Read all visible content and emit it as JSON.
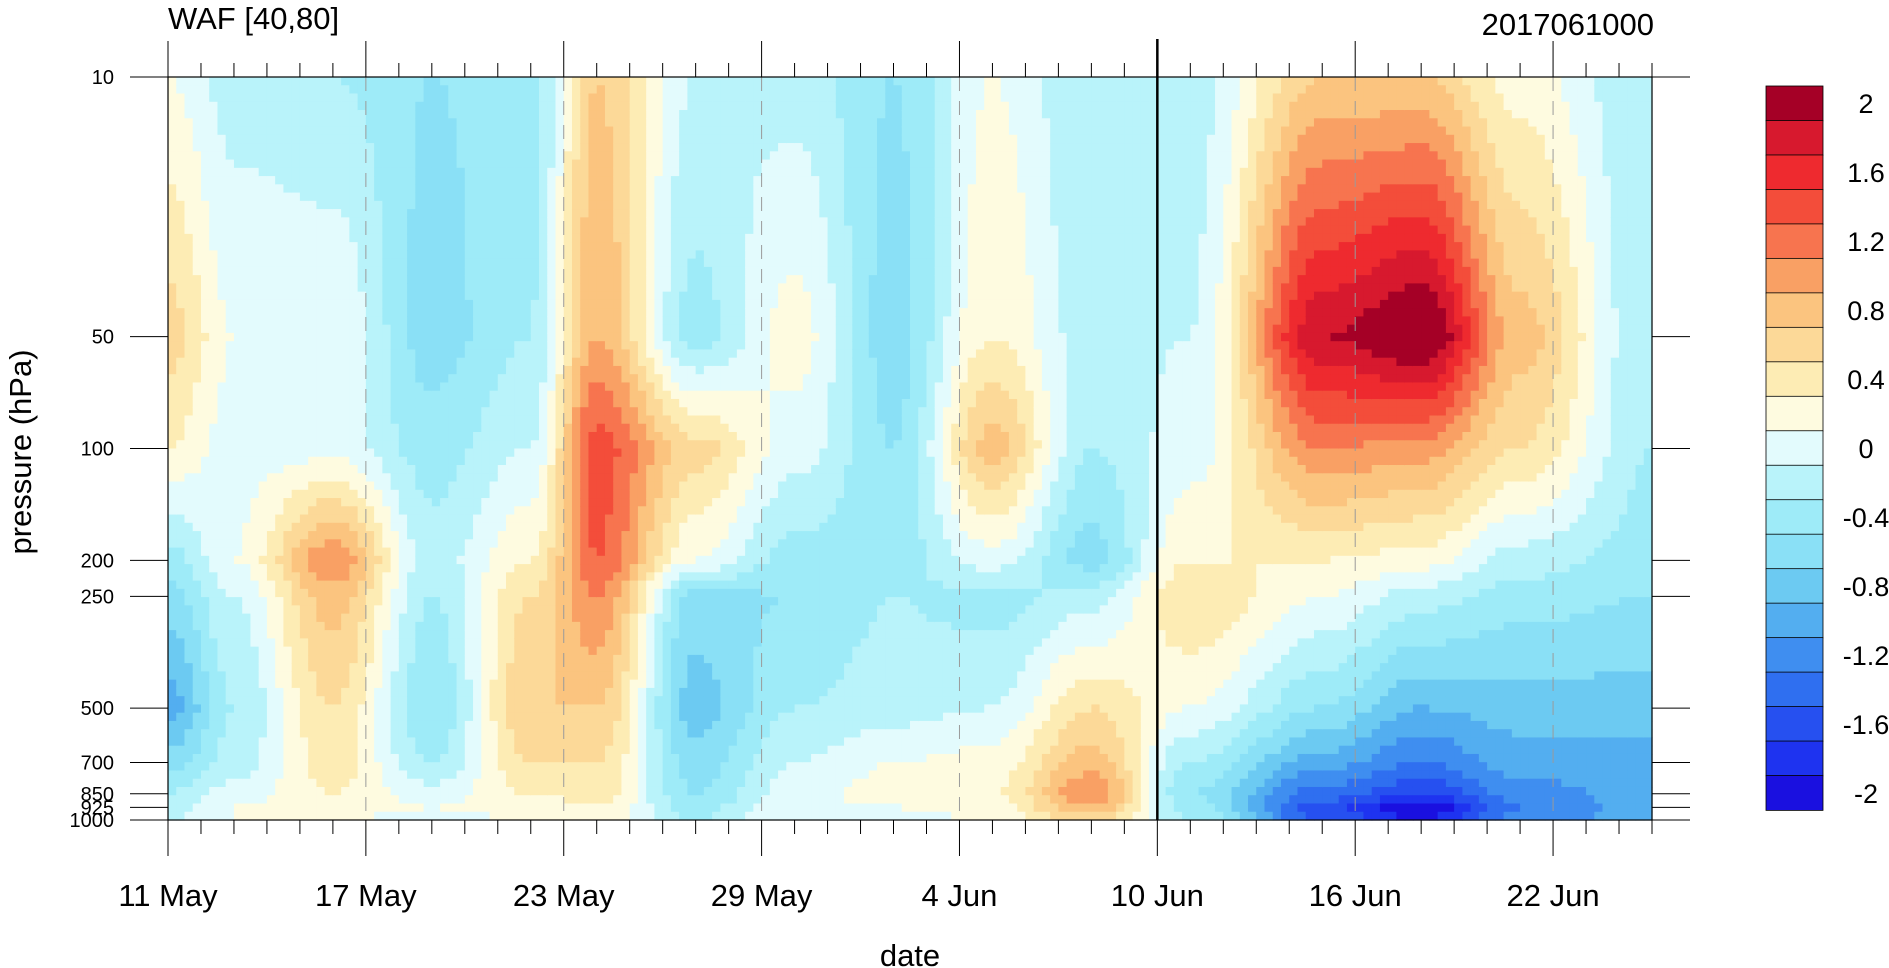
{
  "chart_data": {
    "type": "heatmap",
    "title": "WAF [40,80]",
    "right_title": "2017061000",
    "xlabel": "date",
    "ylabel": "pressure (hPa)",
    "x_tick_labels": [
      "11 May",
      "17 May",
      "23 May",
      "29 May",
      "4 Jun",
      "10 Jun",
      "16 Jun",
      "22 Jun"
    ],
    "x_tick_days": [
      0,
      6,
      12,
      18,
      24,
      30,
      36,
      42
    ],
    "x_range_days": [
      0,
      45
    ],
    "marked_day": 30,
    "y_scale": "log",
    "y_ticks": [
      10,
      50,
      100,
      200,
      250,
      500,
      700,
      850,
      925,
      1000
    ],
    "y_tick_labels": [
      "10",
      "50",
      "100",
      "200",
      "250",
      "500",
      "700",
      "850",
      "925",
      "1000"
    ],
    "y_range": [
      10,
      1000
    ],
    "colorbar": {
      "label_values": [
        2,
        1.6,
        1.2,
        0.8,
        0.4,
        0,
        -0.4,
        -0.8,
        -1.2,
        -1.6,
        -2
      ],
      "labels": [
        "2",
        "1.6",
        "1.2",
        "0.8",
        "0.4",
        "0",
        "-0.4",
        "-0.8",
        "-1.2",
        "-1.6",
        "-2"
      ],
      "colors": [
        "#a50026",
        "#d7192e",
        "#ee2a2f",
        "#f34d3a",
        "#f7744f",
        "#f9a064",
        "#fbc47f",
        "#fcd998",
        "#fdecb4",
        "#fefbe0",
        "#e3fbfd",
        "#b9f3fa",
        "#9eebf8",
        "#8ae0f6",
        "#6ccaf2",
        "#53aef0",
        "#3f8ef0",
        "#2f6ff0",
        "#2650f0",
        "#1e33f0",
        "#1a10e0"
      ]
    },
    "values_grid_note": "",
    "series": [
      {
        "day": 0,
        "p": [
          10,
          50,
          100,
          200,
          250,
          500,
          700,
          850,
          925,
          1000
        ],
        "v": [
          0.1,
          0.6,
          0.3,
          -0.4,
          -0.6,
          -1.0,
          -0.6,
          -0.3,
          -0.2,
          -0.1
        ]
      },
      {
        "day": 2,
        "p": [
          10,
          50,
          100,
          200,
          250,
          500,
          700,
          850,
          925,
          1000
        ],
        "v": [
          -0.2,
          0.1,
          0.0,
          0.1,
          -0.1,
          -0.3,
          -0.2,
          0.0,
          0.1,
          0.1
        ]
      },
      {
        "day": 5,
        "p": [
          10,
          50,
          100,
          200,
          250,
          500,
          700,
          850,
          925,
          1000
        ],
        "v": [
          -0.3,
          0.1,
          0.0,
          1.1,
          0.8,
          0.5,
          0.4,
          0.3,
          0.2,
          0.1
        ]
      },
      {
        "day": 8,
        "p": [
          10,
          50,
          100,
          200,
          250,
          500,
          700,
          850,
          925,
          1000
        ],
        "v": [
          -0.5,
          -0.6,
          -0.4,
          -0.2,
          -0.3,
          -0.5,
          -0.3,
          0.0,
          0.1,
          0.0
        ]
      },
      {
        "day": 11,
        "p": [
          10,
          50,
          100,
          200,
          250,
          500,
          700,
          850,
          925,
          1000
        ],
        "v": [
          -0.4,
          -0.3,
          -0.1,
          0.3,
          0.5,
          0.7,
          0.5,
          0.3,
          0.2,
          0.1
        ]
      },
      {
        "day": 13,
        "p": [
          10,
          50,
          100,
          200,
          250,
          500,
          700,
          850,
          925,
          1000
        ],
        "v": [
          0.7,
          0.9,
          1.4,
          1.3,
          1.1,
          0.7,
          0.5,
          0.4,
          0.3,
          0.2
        ]
      },
      {
        "day": 16,
        "p": [
          10,
          50,
          100,
          200,
          250,
          500,
          700,
          850,
          925,
          1000
        ],
        "v": [
          -0.1,
          -0.4,
          0.6,
          0.1,
          -0.6,
          -0.8,
          -0.6,
          -0.5,
          -0.4,
          -0.3
        ]
      },
      {
        "day": 19,
        "p": [
          10,
          50,
          100,
          200,
          250,
          500,
          700,
          850,
          925,
          1000
        ],
        "v": [
          -0.2,
          0.2,
          0.0,
          -0.4,
          -0.5,
          -0.3,
          -0.1,
          0.0,
          0.1,
          0.1
        ]
      },
      {
        "day": 22,
        "p": [
          10,
          50,
          100,
          200,
          250,
          500,
          700,
          850,
          925,
          1000
        ],
        "v": [
          -0.5,
          -0.6,
          -0.5,
          -0.4,
          -0.3,
          -0.2,
          0.1,
          0.2,
          0.1,
          0.0
        ]
      },
      {
        "day": 25,
        "p": [
          10,
          50,
          100,
          200,
          250,
          500,
          700,
          850,
          925,
          1000
        ],
        "v": [
          0.1,
          0.3,
          0.8,
          0.0,
          -0.4,
          -0.1,
          0.2,
          0.3,
          0.2,
          0.1
        ]
      },
      {
        "day": 28,
        "p": [
          10,
          50,
          100,
          200,
          250,
          500,
          700,
          850,
          925,
          1000
        ],
        "v": [
          -0.3,
          -0.2,
          -0.3,
          -0.6,
          -0.2,
          0.5,
          0.8,
          1.1,
          0.9,
          0.6
        ]
      },
      {
        "day": 31,
        "p": [
          10,
          50,
          100,
          200,
          250,
          500,
          700,
          850,
          925,
          1000
        ],
        "v": [
          -0.2,
          -0.1,
          0.0,
          0.3,
          0.5,
          0.1,
          -0.3,
          -0.5,
          -0.4,
          -0.3
        ]
      },
      {
        "day": 35,
        "p": [
          10,
          50,
          100,
          200,
          250,
          500,
          700,
          850,
          925,
          1000
        ],
        "v": [
          0.7,
          1.9,
          1.1,
          0.3,
          0.1,
          -0.5,
          -1.0,
          -1.4,
          -1.6,
          -1.5
        ]
      },
      {
        "day": 38,
        "p": [
          10,
          50,
          100,
          200,
          250,
          500,
          700,
          850,
          925,
          1000
        ],
        "v": [
          0.7,
          2.2,
          1.0,
          0.2,
          -0.2,
          -0.9,
          -1.3,
          -1.7,
          -2.1,
          -1.9
        ]
      },
      {
        "day": 41,
        "p": [
          10,
          50,
          100,
          200,
          250,
          500,
          700,
          850,
          925,
          1000
        ],
        "v": [
          0.2,
          0.8,
          0.5,
          -0.2,
          -0.4,
          -0.8,
          -1.0,
          -1.2,
          -1.3,
          -1.2
        ]
      },
      {
        "day": 45,
        "p": [
          10,
          50,
          100,
          200,
          250,
          500,
          700,
          850,
          925,
          1000
        ],
        "v": [
          -0.3,
          -0.3,
          -0.3,
          -0.4,
          -0.5,
          -0.8,
          -1.0,
          -1.0,
          -1.0,
          -1.0
        ]
      }
    ]
  }
}
